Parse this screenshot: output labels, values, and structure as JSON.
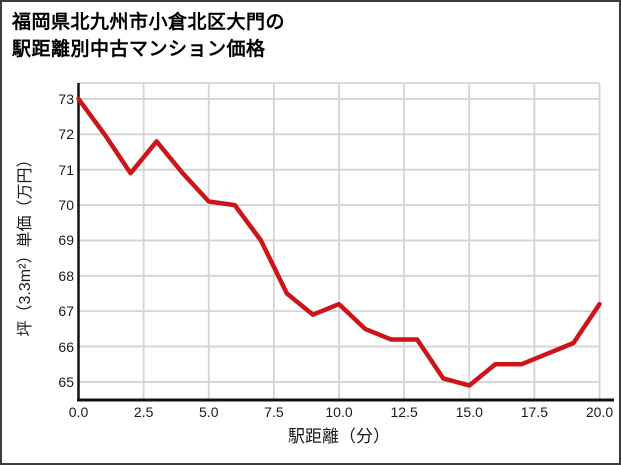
{
  "page": {
    "title_line1": "福岡県北九州市小倉北区大門の",
    "title_line2": "駅距離別中古マンション価格"
  },
  "chart_data": {
    "type": "line",
    "title": "福岡県北九州市小倉北区大門の駅距離別中古マンション価格",
    "xlabel": "駅距離（分）",
    "ylabel": "坪（3.3m²）単価（万円）",
    "x": [
      0,
      1,
      2,
      3,
      4,
      5,
      6,
      7,
      8,
      9,
      10,
      11,
      12,
      13,
      14,
      15,
      16,
      17,
      18,
      19,
      20
    ],
    "values": [
      73.0,
      72.0,
      70.9,
      71.8,
      70.9,
      70.1,
      70.0,
      69.0,
      67.5,
      66.9,
      67.2,
      66.5,
      66.2,
      66.2,
      65.1,
      64.9,
      65.5,
      65.5,
      65.8,
      66.1,
      67.2
    ],
    "x_ticks": [
      0,
      2.5,
      5,
      7.5,
      10,
      12.5,
      15,
      17.5,
      20
    ],
    "x_tick_labels": [
      "0.0",
      "2.5",
      "5.0",
      "7.5",
      "10.0",
      "12.5",
      "15.0",
      "17.5",
      "20.0"
    ],
    "y_ticks": [
      65,
      66,
      67,
      68,
      69,
      70,
      71,
      72,
      73
    ],
    "xlim": [
      0,
      20
    ],
    "ylim": [
      64.49,
      73.45
    ],
    "grid": true,
    "legend": false,
    "line_color": "#cc1519",
    "grid_color": "#d4d4d4",
    "axis_color": "#111111",
    "text_color": "#1a1a1a"
  }
}
